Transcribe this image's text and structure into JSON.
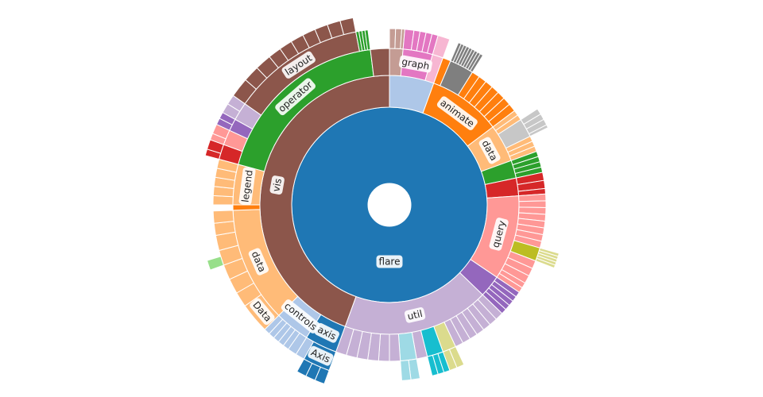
{
  "chart_data": {
    "type": "sunburst",
    "root": {
      "name": "flare",
      "color": "#1f77b4",
      "value": 360,
      "children": [
        {
          "color": "#aec7e8",
          "value": 20,
          "children": [
            {
              "color": "#c49c94",
              "value": 5,
              "children": [
                {
                  "value": 2
                },
                {
                  "value": 2
                },
                {
                  "value": 1
                }
              ]
            },
            {
              "name": "graph",
              "color": "#e377c2",
              "value": 11,
              "children": [
                {
                  "value": 3
                },
                {
                  "value": 2
                },
                {
                  "value": 2
                },
                {
                  "value": 2
                },
                {
                  "value": 2
                }
              ]
            },
            {
              "color": "#f7b6d2",
              "value": 4,
              "children": [
                {
                  "value": 4
                }
              ]
            }
          ]
        },
        {
          "name": "animate",
          "color": "#ff7f0e",
          "value": 33,
          "children": [
            {
              "value": 3
            },
            {
              "color": "#7f7f7f",
              "value": 9,
              "children": [
                {
                  "value": 1
                },
                {
                  "value": 1
                },
                {
                  "value": 1
                },
                {
                  "value": 1
                },
                {
                  "value": 1
                },
                {
                  "value": 1
                },
                {
                  "value": 1
                },
                {
                  "value": 1
                },
                {
                  "value": 1
                }
              ]
            },
            {
              "value": 3
            },
            {
              "value": 3
            },
            {
              "value": 3
            },
            {
              "value": 3
            },
            {
              "value": 3
            },
            {
              "value": 3
            },
            {
              "value": 3
            }
          ]
        },
        {
          "name": "data",
          "color": "#ffbb78",
          "value": 17,
          "children": [
            {
              "value": 2
            },
            {
              "value": 2
            },
            {
              "color": "#c7c7c7",
              "value": 7,
              "children": [
                {
                  "value": 2
                },
                {
                  "value": 2
                },
                {
                  "value": 2
                },
                {
                  "value": 1
                }
              ]
            },
            {
              "value": 2
            },
            {
              "value": 2
            },
            {
              "value": 2
            }
          ]
        },
        {
          "color": "#2ca02c",
          "value": 8,
          "children": [
            {
              "value": 2
            },
            {
              "value": 2
            },
            {
              "value": 2
            },
            {
              "value": 2
            }
          ]
        },
        {
          "color": "#d62728",
          "value": 8,
          "children": [
            {
              "value": 3
            },
            {
              "value": 3
            },
            {
              "value": 2
            }
          ]
        },
        {
          "name": "query",
          "color": "#ff9896",
          "value": 38,
          "children": [
            {
              "value": 2.5
            },
            {
              "value": 2.5
            },
            {
              "value": 2.5
            },
            {
              "value": 2.5
            },
            {
              "value": 2.5
            },
            {
              "value": 2.5
            },
            {
              "value": 2.5
            },
            {
              "value": 2.5
            },
            {
              "color": "#bcbd22",
              "value": 5,
              "children": [
                {
                  "color": "#dbdb8d",
                  "value": 1
                },
                {
                  "color": "#dbdb8d",
                  "value": 1
                },
                {
                  "color": "#dbdb8d",
                  "value": 1
                },
                {
                  "color": "#dbdb8d",
                  "value": 1
                },
                {
                  "color": "#dbdb8d",
                  "value": 1
                }
              ]
            },
            {
              "value": 3
            },
            {
              "value": 3
            },
            {
              "value": 3
            },
            {
              "value": 2
            },
            {
              "value": 2
            }
          ]
        },
        {
          "color": "#9467bd",
          "value": 10,
          "children": [
            {
              "value": 2
            },
            {
              "value": 2
            },
            {
              "value": 2
            },
            {
              "value": 2
            },
            {
              "value": 2
            }
          ]
        },
        {
          "name": "util",
          "color": "#c5b0d5",
          "value": 66,
          "children": [
            {
              "value": 3
            },
            {
              "value": 3
            },
            {
              "value": 3
            },
            {
              "value": 3
            },
            {
              "value": 3
            },
            {
              "value": 3
            },
            {
              "value": 3
            },
            {
              "color": "#dbdb8d",
              "value": 5,
              "children": [
                {
                  "value": 2.5
                },
                {
                  "value": 2.5
                }
              ]
            },
            {
              "color": "#17becf",
              "value": 6,
              "children": [
                {
                  "value": 2
                },
                {
                  "value": 2
                },
                {
                  "value": 2
                }
              ]
            },
            {
              "value": 4
            },
            {
              "color": "#9edae5",
              "value": 6,
              "children": [
                {
                  "value": 3
                },
                {
                  "value": 3
                }
              ]
            },
            {
              "value": 4
            },
            {
              "value": 4
            },
            {
              "value": 4
            },
            {
              "value": 4
            },
            {
              "value": 4
            },
            {
              "value": 4
            }
          ]
        },
        {
          "name": "vis",
          "color": "#8c564b",
          "value": 160,
          "children": [
            {
              "name": "axis",
              "color": "#1f77b4",
              "value": 12,
              "children": [
                {
                  "name": "Axis",
                  "value": 9,
                  "children": [
                    {
                      "value": 3
                    },
                    {
                      "value": 3
                    },
                    {
                      "value": 3
                    }
                  ]
                },
                {
                  "color": "#aec7e8",
                  "value": 3
                }
              ]
            },
            {
              "name": "controls",
              "color": "#aec7e8",
              "value": 13,
              "children": [
                {
                  "value": 3
                },
                {
                  "value": 2
                },
                {
                  "value": 2
                },
                {
                  "value": 2
                },
                {
                  "value": 2
                },
                {
                  "value": 2
                }
              ]
            },
            {
              "name": "data",
              "color": "#ffbb78",
              "value": 43,
              "children": [
                {
                  "name": "Data",
                  "value": 10
                },
                {
                  "value": 5
                },
                {
                  "value": 5
                },
                {
                  "value": 5
                },
                {
                  "value": 5,
                  "children": [
                    {
                      "color": "#98df8a",
                      "value": 3
                    }
                  ]
                },
                {
                  "value": 5
                },
                {
                  "value": 4
                },
                {
                  "value": 4
                }
              ]
            },
            {
              "color": "#ff7f0e",
              "value": 2
            },
            {
              "name": "legend",
              "color": "#ffbb78",
              "value": 15,
              "children": [
                {
                  "value": 3
                },
                {
                  "value": 3
                },
                {
                  "value": 3
                },
                {
                  "value": 3
                },
                {
                  "value": 3
                }
              ]
            },
            {
              "name": "operator",
              "color": "#2ca02c",
              "value": 68,
              "children": [
                {
                  "color": "#d62728",
                  "value": 5,
                  "children": [
                    {
                      "value": 2
                    },
                    {
                      "value": 3
                    }
                  ]
                },
                {
                  "color": "#ff9896",
                  "value": 5,
                  "children": [
                    {
                      "value": 2
                    },
                    {
                      "value": 3
                    }
                  ]
                },
                {
                  "color": "#9467bd",
                  "value": 4,
                  "children": [
                    {
                      "value": 2
                    },
                    {
                      "value": 2
                    }
                  ]
                },
                {
                  "color": "#c5b0d5",
                  "value": 6,
                  "children": [
                    {
                      "value": 3
                    },
                    {
                      "value": 3
                    }
                  ]
                },
                {
                  "name": "layout",
                  "color": "#8c564b",
                  "value": 44,
                  "children": [
                    {
                      "value": 6
                    },
                    {
                      "value": 5
                    },
                    {
                      "value": 5
                    },
                    {
                      "value": 4
                    },
                    {
                      "value": 4
                    },
                    {
                      "value": 4
                    },
                    {
                      "value": 4
                    },
                    {
                      "value": 4
                    },
                    {
                      "value": 4
                    },
                    {
                      "value": 4
                    }
                  ]
                },
                {
                  "value": 1
                },
                {
                  "value": 1
                },
                {
                  "value": 1
                },
                {
                  "value": 1
                }
              ]
            },
            {
              "value": 7
            }
          ]
        }
      ]
    }
  }
}
